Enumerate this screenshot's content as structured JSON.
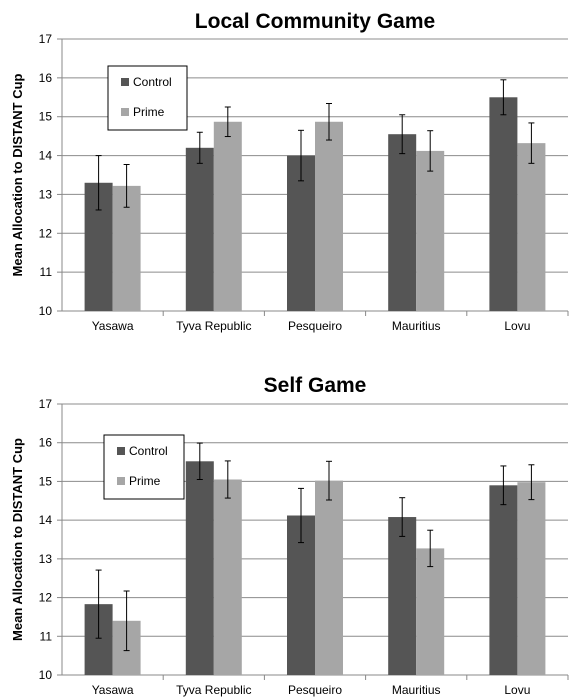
{
  "chart_data": [
    {
      "type": "bar",
      "title": "Local Community Game",
      "ylabel": "Mean Allocation to DISTANT Cup",
      "xlabel": "",
      "ylim": [
        10,
        17
      ],
      "yticks": [
        10,
        11,
        12,
        13,
        14,
        15,
        16,
        17
      ],
      "grid": true,
      "legend_position": "top-left",
      "categories": [
        "Yasawa",
        "Tyva Republic",
        "Pesqueiro",
        "Mauritius",
        "Lovu"
      ],
      "series": [
        {
          "name": "Control",
          "color": "#555555",
          "values": [
            13.3,
            14.2,
            14.0,
            14.55,
            15.5
          ],
          "errors": [
            0.7,
            0.4,
            0.65,
            0.5,
            0.45
          ]
        },
        {
          "name": "Prime",
          "color": "#a6a6a6",
          "values": [
            13.22,
            14.87,
            14.87,
            14.12,
            14.32
          ],
          "errors": [
            0.55,
            0.38,
            0.47,
            0.52,
            0.52
          ]
        }
      ]
    },
    {
      "type": "bar",
      "title": "Self Game",
      "ylabel": "Mean Allocation to DISTANT Cup",
      "xlabel": "",
      "ylim": [
        10,
        17
      ],
      "yticks": [
        10,
        11,
        12,
        13,
        14,
        15,
        16,
        17
      ],
      "grid": true,
      "legend_position": "top-left",
      "categories": [
        "Yasawa",
        "Tyva Republic",
        "Pesqueiro",
        "Mauritius",
        "Lovu"
      ],
      "series": [
        {
          "name": "Control",
          "color": "#555555",
          "values": [
            11.83,
            15.52,
            14.12,
            14.08,
            14.9
          ],
          "errors": [
            0.88,
            0.47,
            0.7,
            0.5,
            0.5
          ]
        },
        {
          "name": "Prime",
          "color": "#a6a6a6",
          "values": [
            11.4,
            15.05,
            15.02,
            13.27,
            14.98
          ],
          "errors": [
            0.77,
            0.48,
            0.5,
            0.47,
            0.45
          ]
        }
      ]
    }
  ]
}
